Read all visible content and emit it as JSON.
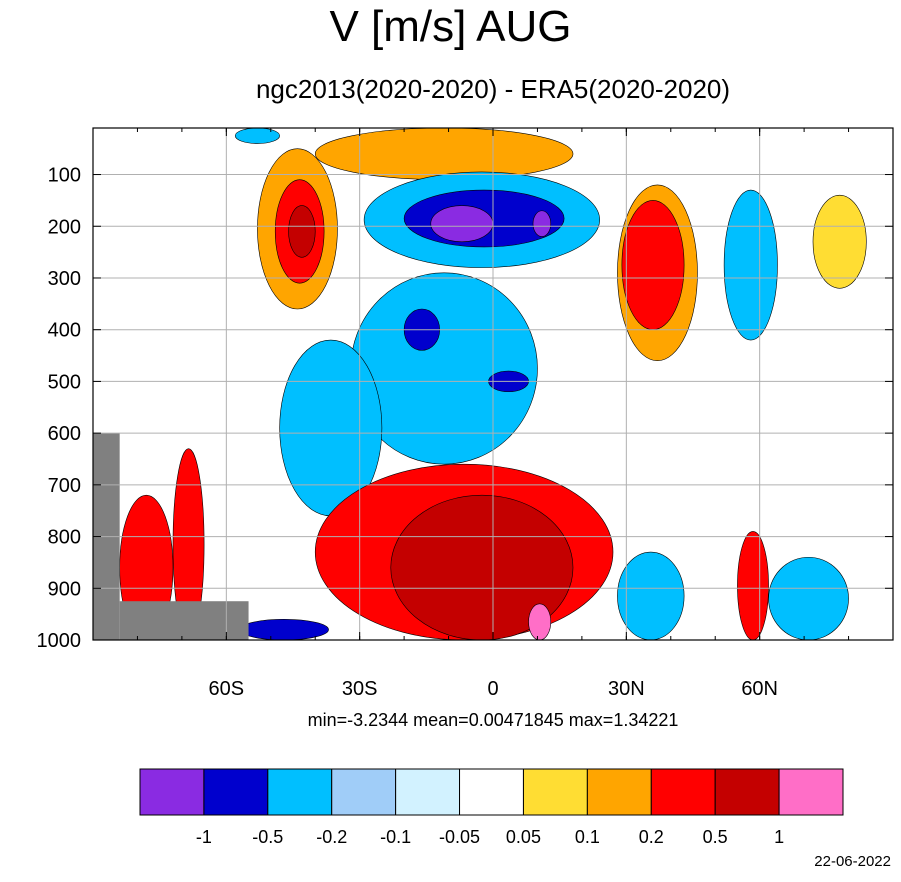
{
  "chart_data": {
    "type": "heatmap",
    "title": "V [m/s] AUG",
    "subtitle": "ngc2013(2020-2020) - ERA5(2020-2020)",
    "stats_text": "min=-3.2344   mean=0.00471845   max=1.34221",
    "date": "22-06-2022",
    "x_ticks": [
      {
        "label": "60S",
        "value": -60
      },
      {
        "label": "30S",
        "value": -30
      },
      {
        "label": "0",
        "value": 0
      },
      {
        "label": "30N",
        "value": 30
      },
      {
        "label": "60N",
        "value": 60
      }
    ],
    "y_ticks": [
      100,
      200,
      300,
      400,
      500,
      600,
      700,
      800,
      900,
      1000
    ],
    "xlim": [
      -90,
      90
    ],
    "ylim": [
      1000,
      10
    ],
    "grid": true,
    "colorbar": {
      "labels": [
        "-1",
        "-0.5",
        "-0.2",
        "-0.1",
        "-0.05",
        "0.05",
        "0.1",
        "0.2",
        "0.5",
        "1"
      ],
      "colors": [
        "#8a2be2",
        "#0000cd",
        "#00bfff",
        "#a0cdf8",
        "#d2f2ff",
        "#ffffff",
        "#ffdd33",
        "#ffa500",
        "#ff0000",
        "#c40000",
        "#ff6ec7"
      ]
    },
    "fields": [
      {
        "name": "upper-tropical-neg",
        "lat": [
          -29,
          24
        ],
        "p": [
          95,
          280
        ],
        "level": 2
      },
      {
        "name": "mid-tropical-neg",
        "lat": [
          -32,
          10
        ],
        "p": [
          290,
          660
        ],
        "level": 2
      },
      {
        "name": "lower-southern-neg",
        "lat": [
          -48,
          -25
        ],
        "p": [
          420,
          760
        ],
        "level": 2
      },
      {
        "name": "upper-tropical-strong-neg",
        "lat": [
          -20,
          16
        ],
        "p": [
          130,
          240
        ],
        "level": 1
      },
      {
        "name": "upper-tropical-max-neg",
        "lat": [
          -14,
          0
        ],
        "p": [
          160,
          230
        ],
        "level": 0
      },
      {
        "name": "upper-tropical-max-neg-2",
        "lat": [
          9,
          13
        ],
        "p": [
          170,
          220
        ],
        "level": 0
      },
      {
        "name": "mid-tropical-strong-neg",
        "lat": [
          -20,
          -12
        ],
        "p": [
          360,
          440
        ],
        "level": 1
      },
      {
        "name": "mid-tropical-strong-neg-2",
        "lat": [
          -1,
          8
        ],
        "p": [
          480,
          520
        ],
        "level": 1
      },
      {
        "name": "lower-tropical-pos",
        "lat": [
          -40,
          27
        ],
        "p": [
          660,
          1000
        ],
        "level": 8
      },
      {
        "name": "lower-tropical-strong-pos",
        "lat": [
          -23,
          18
        ],
        "p": [
          720,
          1000
        ],
        "level": 9
      },
      {
        "name": "lower-tropical-max-pos",
        "lat": [
          8,
          13
        ],
        "p": [
          930,
          1000
        ],
        "level": 10
      },
      {
        "name": "sh-jet-pos",
        "lat": [
          -53,
          -35
        ],
        "p": [
          50,
          360
        ],
        "level": 7
      },
      {
        "name": "sh-jet-strong-pos",
        "lat": [
          -49,
          -38
        ],
        "p": [
          110,
          310
        ],
        "level": 8
      },
      {
        "name": "sh-jet-max-pos",
        "lat": [
          -46,
          -40
        ],
        "p": [
          160,
          260
        ],
        "level": 9
      },
      {
        "name": "nh-jet-pos",
        "lat": [
          28,
          46
        ],
        "p": [
          120,
          460
        ],
        "level": 7
      },
      {
        "name": "nh-jet-strong-pos",
        "lat": [
          29,
          43
        ],
        "p": [
          150,
          400
        ],
        "level": 8
      },
      {
        "name": "nh-neg-column",
        "lat": [
          52,
          64
        ],
        "p": [
          130,
          420
        ],
        "level": 2
      },
      {
        "name": "nh-upper-pos",
        "lat": [
          72,
          84
        ],
        "p": [
          140,
          320
        ],
        "level": 6
      },
      {
        "name": "nh-surface-neg",
        "lat": [
          28,
          43
        ],
        "p": [
          830,
          1000
        ],
        "level": 2
      },
      {
        "name": "nh-surface-neg-2",
        "lat": [
          62,
          80
        ],
        "p": [
          840,
          1000
        ],
        "level": 2
      },
      {
        "name": "nh-surface-pos",
        "lat": [
          55,
          62
        ],
        "p": [
          790,
          1000
        ],
        "level": 8
      },
      {
        "name": "sh-surface-pos",
        "lat": [
          -84,
          -72
        ],
        "p": [
          720,
          1000
        ],
        "level": 8
      },
      {
        "name": "sh-surface-pos-2",
        "lat": [
          -72,
          -65
        ],
        "p": [
          630,
          1000
        ],
        "level": 8
      },
      {
        "name": "sh-surface-neg",
        "lat": [
          -57,
          -37
        ],
        "p": [
          960,
          1000
        ],
        "level": 1
      },
      {
        "name": "top-band-pos",
        "lat": [
          -40,
          18
        ],
        "p": [
          10,
          110
        ],
        "level": 7
      },
      {
        "name": "top-band-neg",
        "lat": [
          -58,
          -48
        ],
        "p": [
          10,
          40
        ],
        "level": 2
      }
    ],
    "topography": [
      {
        "lat": [
          -90,
          -84
        ],
        "p": [
          600,
          1000
        ]
      },
      {
        "lat": [
          -84,
          -55
        ],
        "p": [
          925,
          1000
        ]
      }
    ]
  }
}
